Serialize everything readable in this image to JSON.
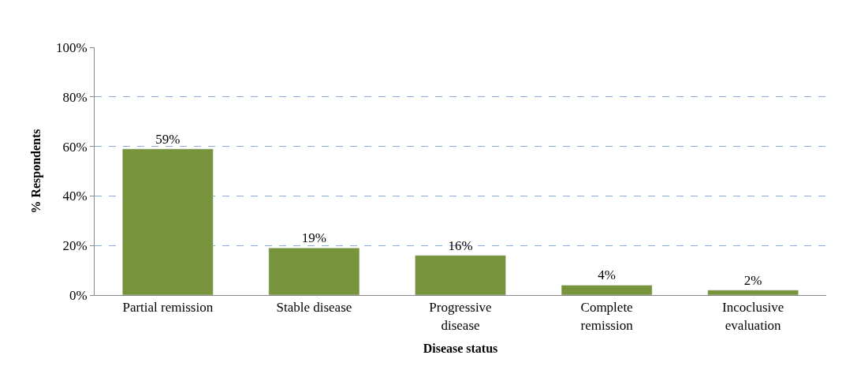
{
  "chart_data": {
    "type": "bar",
    "xlabel": "Disease status",
    "ylabel": "% Respondents",
    "categories": [
      "Partial remission",
      "Stable disease",
      "Progressive\ndisease",
      "Complete\nremission",
      "Incoclusive\nevaluation"
    ],
    "values": [
      59,
      19,
      16,
      4,
      2
    ],
    "value_labels": [
      "59%",
      "19%",
      "16%",
      "4%",
      "2%"
    ],
    "color": "#77933c",
    "ylim": [
      0,
      100
    ],
    "yticks": [
      {
        "value": 0,
        "label": "0%"
      },
      {
        "value": 20,
        "label": "20%"
      },
      {
        "value": 40,
        "label": "40%"
      },
      {
        "value": 60,
        "label": "60%"
      },
      {
        "value": 80,
        "label": "80%"
      },
      {
        "value": 100,
        "label": "100%"
      }
    ],
    "grid": "y"
  }
}
